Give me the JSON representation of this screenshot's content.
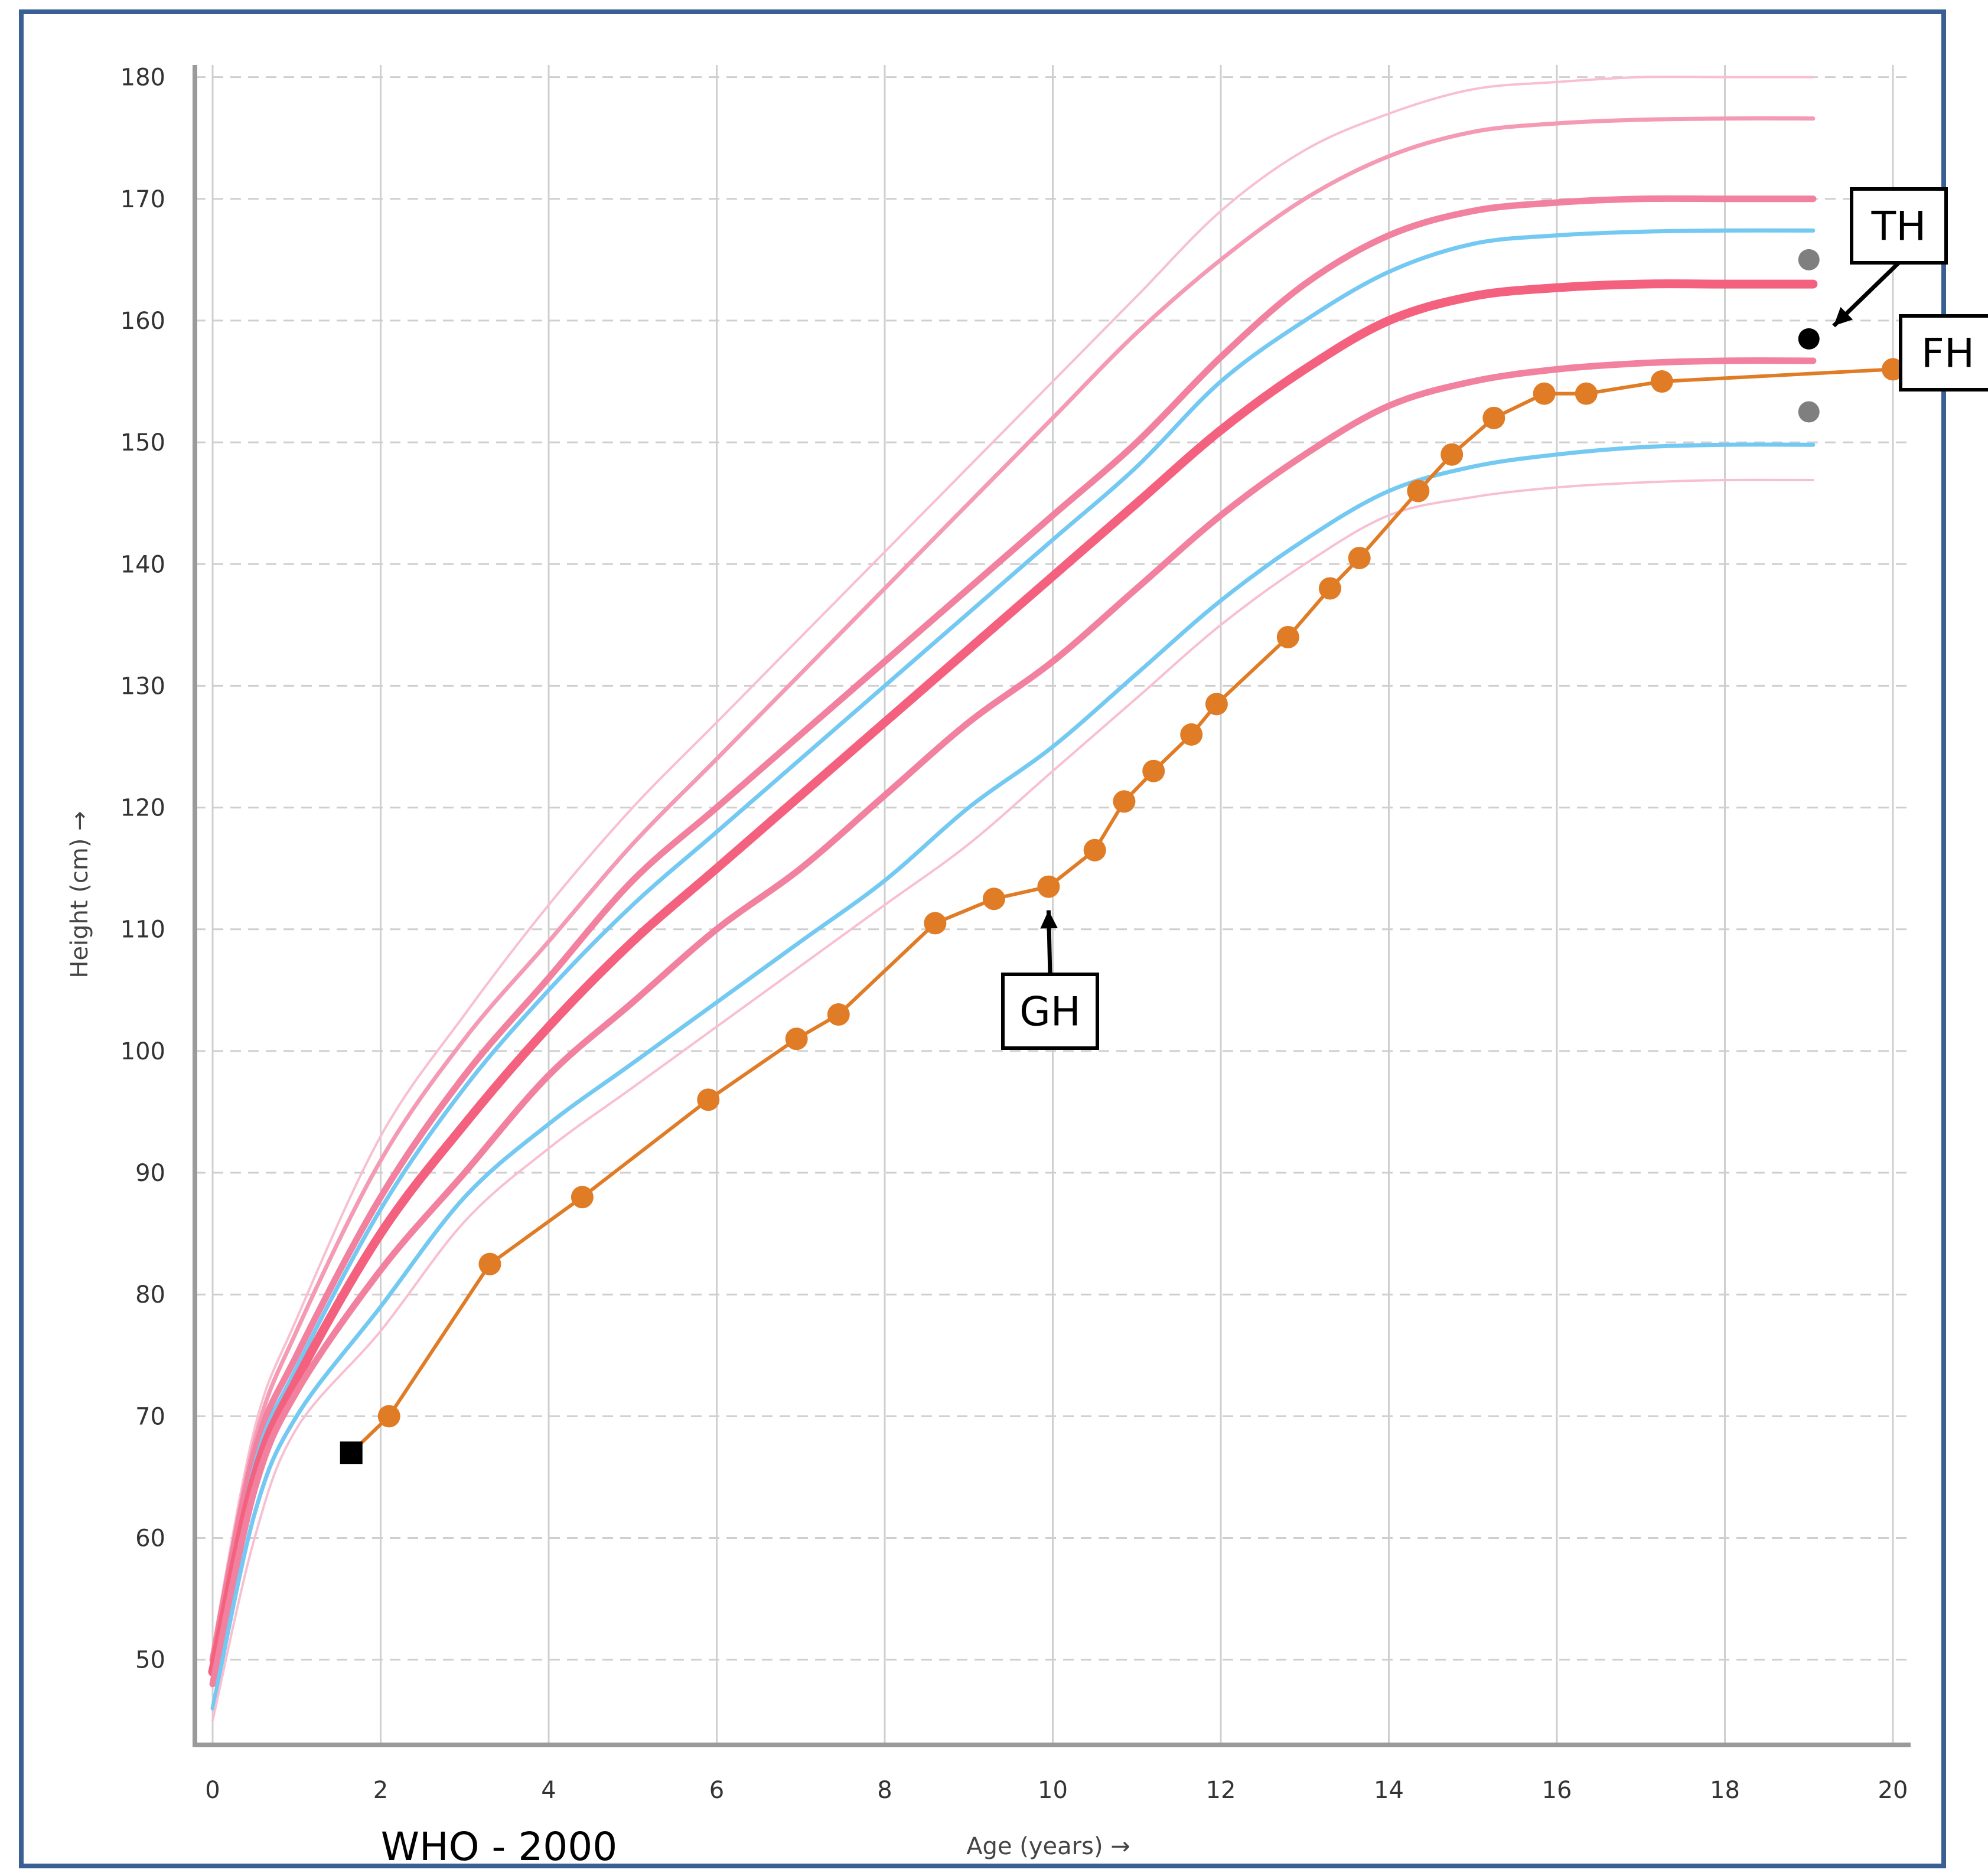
{
  "source_label": "WHO - 2000",
  "chart_data": {
    "type": "line",
    "title": "",
    "xlabel": "Age (years) →",
    "ylabel": "Height (cm) →",
    "xlim": [
      0,
      20
    ],
    "ylim": [
      43,
      181
    ],
    "x_ticks": [
      0,
      2,
      4,
      6,
      8,
      10,
      12,
      14,
      16,
      18,
      20
    ],
    "y_ticks": [
      50,
      60,
      70,
      80,
      90,
      100,
      110,
      120,
      130,
      140,
      150,
      160,
      170,
      180
    ],
    "grid": true,
    "reference_curves": [
      {
        "color": "#f8bfd0",
        "weight": "thin",
        "points": [
          [
            0,
            51
          ],
          [
            0.5,
            69
          ],
          [
            1,
            78
          ],
          [
            2,
            93
          ],
          [
            3,
            103
          ],
          [
            4,
            112
          ],
          [
            5,
            120
          ],
          [
            6,
            127
          ],
          [
            7,
            134
          ],
          [
            8,
            141
          ],
          [
            9,
            148
          ],
          [
            10,
            155
          ],
          [
            11,
            162
          ],
          [
            12,
            169
          ],
          [
            13,
            174
          ],
          [
            14,
            177
          ],
          [
            15,
            179
          ],
          [
            16,
            179.6
          ],
          [
            17,
            180
          ],
          [
            18,
            180
          ],
          [
            19.05,
            180
          ]
        ]
      },
      {
        "color": "#f49ab5",
        "weight": "medium",
        "points": [
          [
            0,
            50.5
          ],
          [
            0.5,
            68
          ],
          [
            1,
            77
          ],
          [
            2,
            91
          ],
          [
            3,
            101
          ],
          [
            4,
            109
          ],
          [
            5,
            117
          ],
          [
            6,
            124
          ],
          [
            7,
            131
          ],
          [
            8,
            138
          ],
          [
            9,
            145
          ],
          [
            10,
            152
          ],
          [
            11,
            159
          ],
          [
            12,
            165
          ],
          [
            13,
            170
          ],
          [
            14,
            173.5
          ],
          [
            15,
            175.5
          ],
          [
            16,
            176.2
          ],
          [
            17,
            176.5
          ],
          [
            18,
            176.6
          ],
          [
            19.05,
            176.6
          ]
        ]
      },
      {
        "color": "#f2809f",
        "weight": "thick",
        "points": [
          [
            0,
            50
          ],
          [
            0.5,
            67
          ],
          [
            1,
            75
          ],
          [
            2,
            88
          ],
          [
            3,
            98
          ],
          [
            4,
            106
          ],
          [
            5,
            114
          ],
          [
            6,
            120
          ],
          [
            7,
            126
          ],
          [
            8,
            132
          ],
          [
            9,
            138
          ],
          [
            10,
            144
          ],
          [
            11,
            150
          ],
          [
            12,
            157
          ],
          [
            13,
            163
          ],
          [
            14,
            167
          ],
          [
            15,
            169
          ],
          [
            16,
            169.7
          ],
          [
            17,
            170
          ],
          [
            18,
            170
          ],
          [
            19.05,
            170
          ]
        ]
      },
      {
        "color": "#74c9f2",
        "weight": "medium",
        "points": [
          [
            0,
            49
          ],
          [
            0.5,
            66
          ],
          [
            1,
            74
          ],
          [
            2,
            87
          ],
          [
            3,
            97
          ],
          [
            4,
            105
          ],
          [
            5,
            112
          ],
          [
            6,
            118
          ],
          [
            7,
            124
          ],
          [
            8,
            130
          ],
          [
            9,
            136
          ],
          [
            10,
            142
          ],
          [
            11,
            148
          ],
          [
            12,
            155
          ],
          [
            13,
            160
          ],
          [
            14,
            164
          ],
          [
            15,
            166.3
          ],
          [
            16,
            167
          ],
          [
            17,
            167.3
          ],
          [
            18,
            167.4
          ],
          [
            19.05,
            167.4
          ]
        ]
      },
      {
        "color": "#f4617f",
        "weight": "heavy",
        "points": [
          [
            0,
            49
          ],
          [
            0.5,
            65
          ],
          [
            1,
            73
          ],
          [
            2,
            85
          ],
          [
            3,
            94
          ],
          [
            4,
            102
          ],
          [
            5,
            109
          ],
          [
            6,
            115
          ],
          [
            7,
            121
          ],
          [
            8,
            127
          ],
          [
            9,
            133
          ],
          [
            10,
            139
          ],
          [
            11,
            145
          ],
          [
            12,
            151
          ],
          [
            13,
            156
          ],
          [
            14,
            160
          ],
          [
            15,
            162
          ],
          [
            16,
            162.7
          ],
          [
            17,
            163
          ],
          [
            18,
            163
          ],
          [
            19.05,
            163
          ]
        ]
      },
      {
        "color": "#f2809f",
        "weight": "thick",
        "points": [
          [
            0,
            48
          ],
          [
            0.5,
            64
          ],
          [
            1,
            72
          ],
          [
            2,
            82
          ],
          [
            3,
            90
          ],
          [
            4,
            98
          ],
          [
            5,
            104
          ],
          [
            6,
            110
          ],
          [
            7,
            115
          ],
          [
            8,
            121
          ],
          [
            9,
            127
          ],
          [
            10,
            132
          ],
          [
            11,
            138
          ],
          [
            12,
            144
          ],
          [
            13,
            149
          ],
          [
            14,
            153
          ],
          [
            15,
            155
          ],
          [
            16,
            156
          ],
          [
            17,
            156.5
          ],
          [
            18,
            156.7
          ],
          [
            19.05,
            156.7
          ]
        ]
      },
      {
        "color": "#74c9f2",
        "weight": "medium",
        "points": [
          [
            0,
            46
          ],
          [
            0.5,
            62
          ],
          [
            1,
            70
          ],
          [
            2,
            79
          ],
          [
            3,
            88
          ],
          [
            4,
            94
          ],
          [
            5,
            99
          ],
          [
            6,
            104
          ],
          [
            7,
            109
          ],
          [
            8,
            114
          ],
          [
            9,
            120
          ],
          [
            10,
            125
          ],
          [
            11,
            131
          ],
          [
            12,
            137
          ],
          [
            13,
            142
          ],
          [
            14,
            146
          ],
          [
            15,
            148
          ],
          [
            16,
            149
          ],
          [
            17,
            149.6
          ],
          [
            18,
            149.8
          ],
          [
            19.05,
            149.8
          ]
        ]
      },
      {
        "color": "#f8bfd0",
        "weight": "thin",
        "points": [
          [
            0,
            45
          ],
          [
            0.5,
            60
          ],
          [
            1,
            69
          ],
          [
            2,
            77
          ],
          [
            3,
            86
          ],
          [
            4,
            92
          ],
          [
            5,
            97
          ],
          [
            6,
            102
          ],
          [
            7,
            107
          ],
          [
            8,
            112
          ],
          [
            9,
            117
          ],
          [
            10,
            123
          ],
          [
            11,
            129
          ],
          [
            12,
            135
          ],
          [
            13,
            140
          ],
          [
            14,
            144
          ],
          [
            15,
            145.5
          ],
          [
            16,
            146.3
          ],
          [
            17,
            146.7
          ],
          [
            18,
            146.9
          ],
          [
            19.05,
            146.9
          ]
        ]
      }
    ],
    "series": [
      {
        "color": "#e07b26",
        "x": [
          1.65,
          2.1,
          3.3,
          4.4,
          5.9,
          6.95,
          7.45,
          8.6,
          9.3,
          9.95,
          10.5,
          10.85,
          11.2,
          11.65,
          11.95,
          12.8,
          13.3,
          13.65,
          14.35,
          14.75,
          15.25,
          15.85,
          16.35,
          17.25,
          20
        ],
        "y": [
          67,
          70,
          82.5,
          88,
          96,
          101,
          103,
          110.5,
          112.5,
          113.5,
          116.5,
          120.5,
          123,
          126,
          128.5,
          134,
          138,
          140.5,
          146,
          149,
          152,
          154,
          154,
          155,
          156
        ]
      }
    ],
    "start_marker": {
      "x": 1.65,
      "y": 67
    },
    "target_marks": [
      {
        "x": 19.0,
        "y": 165,
        "color": "#7f7f7f"
      },
      {
        "x": 19.0,
        "y": 158.5,
        "color": "#000000"
      },
      {
        "x": 19.0,
        "y": 152.5,
        "color": "#7f7f7f"
      }
    ],
    "annotations": [
      {
        "text": "TH",
        "points_to": [
          19.0,
          158.5
        ]
      },
      {
        "text": "FH",
        "points_to": [
          20,
          156
        ]
      },
      {
        "text": "GH",
        "points_to": [
          9.95,
          113.5
        ]
      }
    ]
  }
}
